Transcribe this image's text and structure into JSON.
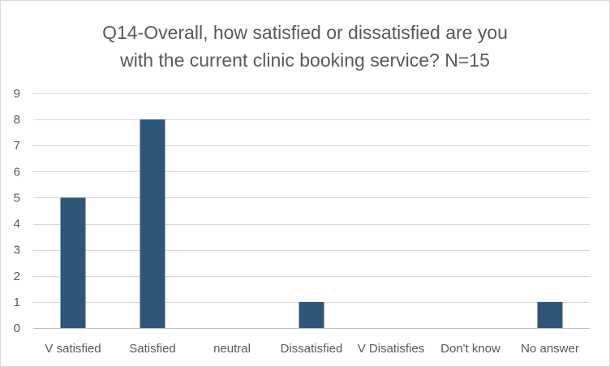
{
  "chart_data": {
    "type": "bar",
    "title_lines": [
      "Q14-Overall, how satisfied or dissatisfied are you",
      "with the current clinic booking service?  N=15"
    ],
    "categories": [
      "V satisfied",
      "Satisfied",
      "neutral",
      "Dissatisfied",
      "V Disatisfies",
      "Don't know",
      "No answer"
    ],
    "values": [
      5,
      8,
      0,
      1,
      0,
      0,
      1
    ],
    "ylim": [
      0,
      9
    ],
    "yticks": [
      0,
      1,
      2,
      3,
      4,
      5,
      6,
      7,
      8,
      9
    ],
    "grid": true,
    "legend": "none",
    "colors": {
      "bar": "#2e5679",
      "grid": "#d9d9d9",
      "axis": "#bfbfbf",
      "text": "#595959"
    }
  }
}
